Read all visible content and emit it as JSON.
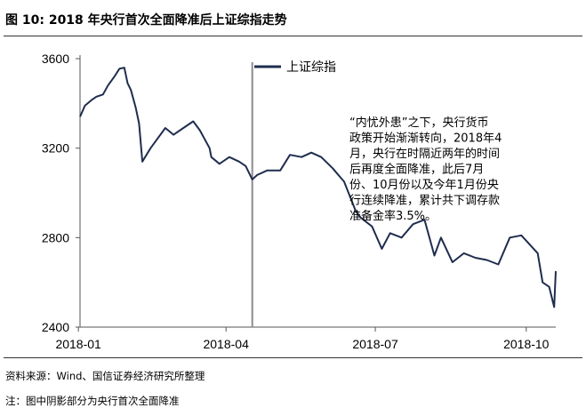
{
  "figure_title": "图 10: 2018 年央行首次全面降准后上证综指走势",
  "source_text": "资料来源：Wind、国信证券经济研究所整理",
  "note_text": "注：图中阴影部分为央行首次全面降准",
  "colors": {
    "line": "#1f2d4e",
    "marker": "#8c8c8c",
    "axis": "#555555"
  },
  "chart_data": {
    "type": "line",
    "title": "",
    "xlabel": "",
    "ylabel": "",
    "ylim": [
      2400,
      3600
    ],
    "yticks": [
      2400,
      2800,
      3200,
      3600
    ],
    "xticks": [
      "2018-01",
      "2018-04",
      "2018-07",
      "2018-10"
    ],
    "xrange": [
      "2018-01-02",
      "2018-10-19"
    ],
    "marker_date": "2018-04-17",
    "legend": {
      "position": "top-right",
      "entries": [
        "上证综指"
      ]
    },
    "annotation": [
      "“内忧外患”之下，央行货币",
      "政策开始渐渐转向，2018年4",
      "月，央行在时隔近两年的时间",
      "后再度全面降准，此后7月",
      "份、10月份以及今年1月份央",
      "行连续降准，累计共下调存款",
      "准备金率3.5%。"
    ],
    "series": [
      {
        "name": "上证综指",
        "x": [
          "2018-01-02",
          "2018-01-05",
          "2018-01-09",
          "2018-01-12",
          "2018-01-16",
          "2018-01-19",
          "2018-01-23",
          "2018-01-26",
          "2018-01-29",
          "2018-01-31",
          "2018-02-02",
          "2018-02-05",
          "2018-02-07",
          "2018-02-09",
          "2018-02-14",
          "2018-02-23",
          "2018-02-28",
          "2018-03-06",
          "2018-03-12",
          "2018-03-16",
          "2018-03-22",
          "2018-03-23",
          "2018-03-28",
          "2018-04-03",
          "2018-04-09",
          "2018-04-13",
          "2018-04-17",
          "2018-04-20",
          "2018-04-26",
          "2018-05-04",
          "2018-05-10",
          "2018-05-17",
          "2018-05-23",
          "2018-05-29",
          "2018-06-05",
          "2018-06-12",
          "2018-06-19",
          "2018-06-22",
          "2018-06-29",
          "2018-07-05",
          "2018-07-10",
          "2018-07-17",
          "2018-07-24",
          "2018-07-31",
          "2018-08-06",
          "2018-08-10",
          "2018-08-17",
          "2018-08-24",
          "2018-08-31",
          "2018-09-07",
          "2018-09-14",
          "2018-09-21",
          "2018-09-28",
          "2018-10-08",
          "2018-10-11",
          "2018-10-15",
          "2018-10-18",
          "2018-10-19"
        ],
        "values": [
          3340,
          3390,
          3415,
          3430,
          3440,
          3480,
          3520,
          3555,
          3560,
          3490,
          3460,
          3380,
          3310,
          3140,
          3200,
          3290,
          3260,
          3290,
          3320,
          3280,
          3200,
          3160,
          3130,
          3160,
          3140,
          3120,
          3060,
          3080,
          3100,
          3100,
          3170,
          3160,
          3180,
          3160,
          3110,
          3050,
          2920,
          2890,
          2850,
          2750,
          2820,
          2800,
          2860,
          2880,
          2720,
          2800,
          2690,
          2730,
          2710,
          2700,
          2680,
          2800,
          2810,
          2730,
          2600,
          2580,
          2490,
          2650
        ]
      }
    ]
  }
}
